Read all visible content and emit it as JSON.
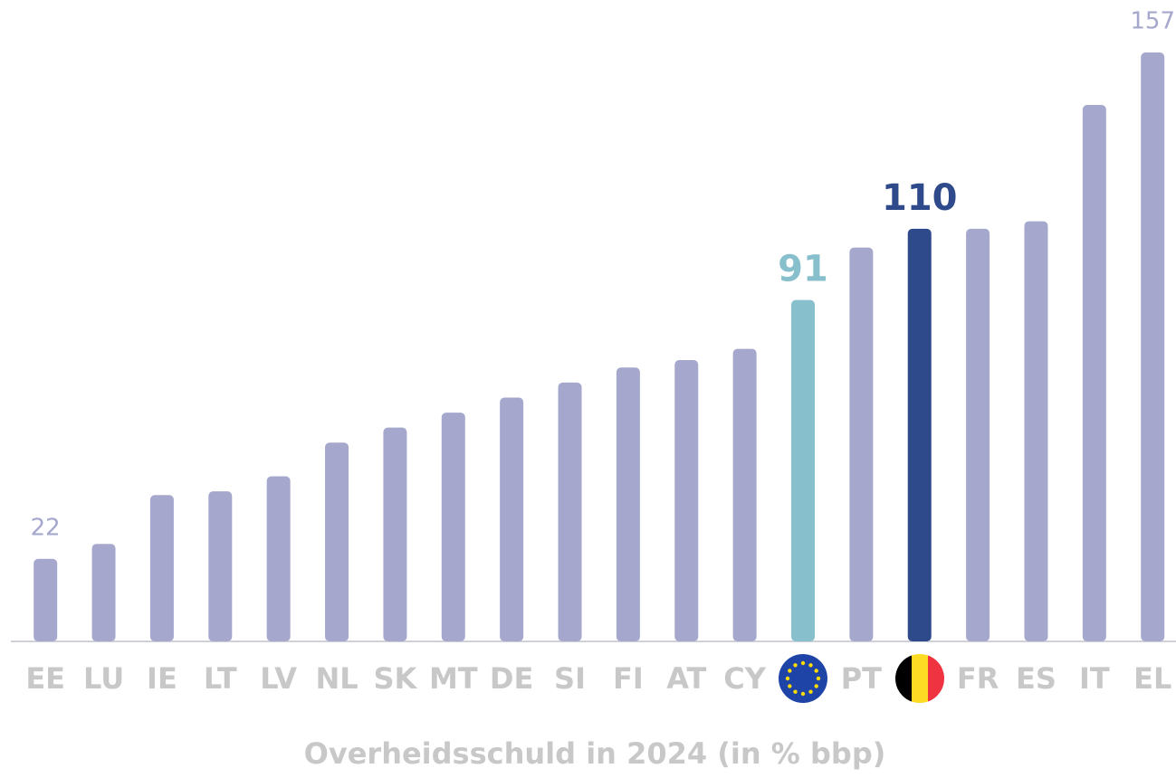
{
  "chart_data": {
    "type": "bar",
    "title": "Overheidsschuld in 2024 (in % bbp)",
    "categories": [
      "EE",
      "LU",
      "IE",
      "LT",
      "LV",
      "NL",
      "SK",
      "MT",
      "DE",
      "SI",
      "FI",
      "AT",
      "CY",
      null,
      "PT",
      null,
      "FR",
      "ES",
      "IT",
      "EL"
    ],
    "values": [
      22,
      26,
      39,
      40,
      44,
      53,
      57,
      61,
      65,
      69,
      73,
      75,
      78,
      91,
      105,
      110,
      110,
      112,
      143,
      157
    ],
    "colors": [
      "#a5a8cc",
      "#a5a8cc",
      "#a5a8cc",
      "#a5a8cc",
      "#a5a8cc",
      "#a5a8cc",
      "#a5a8cc",
      "#a5a8cc",
      "#a5a8cc",
      "#a5a8cc",
      "#a5a8cc",
      "#a5a8cc",
      "#a5a8cc",
      "#88bfcc",
      "#a5a8cc",
      "#2e4a8a",
      "#a5a8cc",
      "#a5a8cc",
      "#a5a8cc",
      "#a5a8cc"
    ],
    "show_value": [
      true,
      false,
      false,
      false,
      false,
      false,
      false,
      false,
      false,
      false,
      false,
      false,
      false,
      true,
      false,
      true,
      false,
      false,
      false,
      true
    ],
    "ylim": [
      0,
      157
    ]
  }
}
